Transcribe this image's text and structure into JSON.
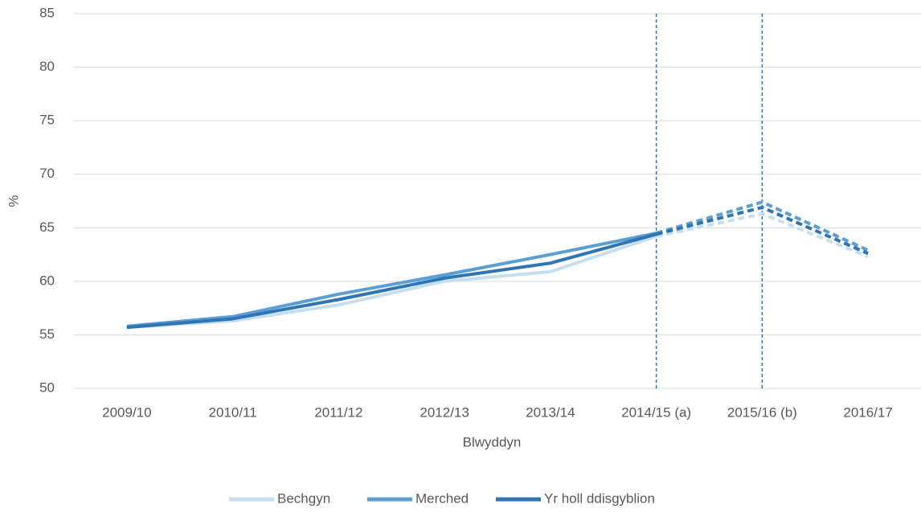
{
  "chart_data": {
    "type": "line",
    "categories": [
      "2009/10",
      "2010/11",
      "2011/12",
      "2012/13",
      "2013/14",
      "2014/15 (a)",
      "2015/16 (b)",
      "2016/17"
    ],
    "series": [
      {
        "name": "Bechgyn",
        "color": "#c5dff0",
        "values": [
          55.7,
          56.3,
          57.8,
          60.0,
          60.9,
          64.2,
          66.3,
          62.3
        ]
      },
      {
        "name": "Merched",
        "color": "#5a9fd4",
        "values": [
          55.8,
          56.7,
          58.8,
          60.6,
          62.5,
          64.5,
          67.4,
          62.9
        ]
      },
      {
        "name": "Yr holl ddisgyblion",
        "color": "#2e75b6",
        "values": [
          55.7,
          56.5,
          58.3,
          60.3,
          61.7,
          64.4,
          66.9,
          62.6
        ]
      }
    ],
    "xlabel": "Blwyddyn",
    "ylabel": "%",
    "ylim": [
      50,
      85
    ],
    "yticks": [
      50,
      55,
      60,
      65,
      70,
      75,
      80,
      85
    ],
    "grid": true,
    "legend": "bottom",
    "dashed_from": 5,
    "vline_at": [
      5,
      6
    ],
    "vline_color": "#2e75b6"
  }
}
